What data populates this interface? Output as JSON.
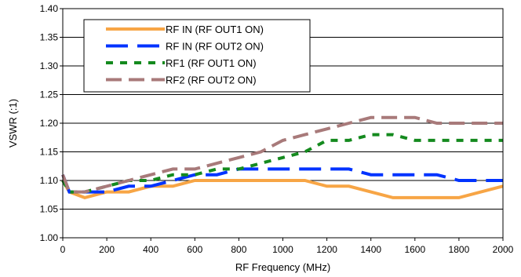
{
  "chart_data": {
    "type": "line",
    "title": "",
    "xlabel": "RF Frequency (MHz)",
    "ylabel": "VSWR (:1)",
    "xlim": [
      0,
      2000
    ],
    "ylim": [
      1.0,
      1.4
    ],
    "x_ticks": [
      0,
      200,
      400,
      600,
      800,
      1000,
      1200,
      1400,
      1600,
      1800,
      2000
    ],
    "y_ticks": [
      1.0,
      1.05,
      1.1,
      1.15,
      1.2,
      1.25,
      1.3,
      1.35,
      1.4
    ],
    "grid": "horizontal",
    "legend_position": "top-left",
    "series": [
      {
        "name": "RF IN (RF OUT1 ON)",
        "color": "#f7a545",
        "dash": "solid",
        "x": [
          0,
          30,
          100,
          200,
          300,
          400,
          500,
          600,
          700,
          800,
          900,
          1000,
          1100,
          1200,
          1300,
          1400,
          1500,
          1600,
          1700,
          1800,
          1900,
          2000
        ],
        "y": [
          1.1,
          1.08,
          1.07,
          1.08,
          1.08,
          1.09,
          1.09,
          1.1,
          1.1,
          1.1,
          1.1,
          1.1,
          1.1,
          1.09,
          1.09,
          1.08,
          1.07,
          1.07,
          1.07,
          1.07,
          1.08,
          1.09
        ]
      },
      {
        "name": "RF IN (RF OUT2 ON)",
        "color": "#0033ff",
        "dash": "long",
        "x": [
          0,
          30,
          100,
          200,
          300,
          400,
          500,
          600,
          700,
          800,
          900,
          1000,
          1100,
          1200,
          1300,
          1400,
          1500,
          1600,
          1700,
          1800,
          1900,
          2000
        ],
        "y": [
          1.11,
          1.08,
          1.08,
          1.08,
          1.09,
          1.09,
          1.1,
          1.11,
          1.11,
          1.12,
          1.12,
          1.12,
          1.12,
          1.12,
          1.12,
          1.11,
          1.11,
          1.11,
          1.11,
          1.1,
          1.1,
          1.1
        ]
      },
      {
        "name": "RF1 (RF OUT1 ON)",
        "color": "#148a1e",
        "dash": "dotted",
        "x": [
          0,
          30,
          100,
          200,
          300,
          400,
          500,
          600,
          700,
          800,
          900,
          1000,
          1100,
          1200,
          1300,
          1400,
          1500,
          1600,
          1700,
          1800,
          1900,
          2000
        ],
        "y": [
          1.1,
          1.08,
          1.08,
          1.09,
          1.1,
          1.1,
          1.11,
          1.11,
          1.12,
          1.12,
          1.13,
          1.14,
          1.15,
          1.17,
          1.17,
          1.18,
          1.18,
          1.17,
          1.17,
          1.17,
          1.17,
          1.17
        ]
      },
      {
        "name": "RF2 (RF OUT2 ON)",
        "color": "#a87a7a",
        "dash": "medium",
        "x": [
          0,
          30,
          100,
          200,
          300,
          400,
          500,
          600,
          700,
          800,
          900,
          1000,
          1100,
          1200,
          1300,
          1400,
          1500,
          1600,
          1700,
          1800,
          1900,
          2000
        ],
        "y": [
          1.11,
          1.08,
          1.08,
          1.09,
          1.1,
          1.11,
          1.12,
          1.12,
          1.13,
          1.14,
          1.15,
          1.17,
          1.18,
          1.19,
          1.2,
          1.21,
          1.21,
          1.21,
          1.2,
          1.2,
          1.2,
          1.2
        ]
      }
    ]
  }
}
